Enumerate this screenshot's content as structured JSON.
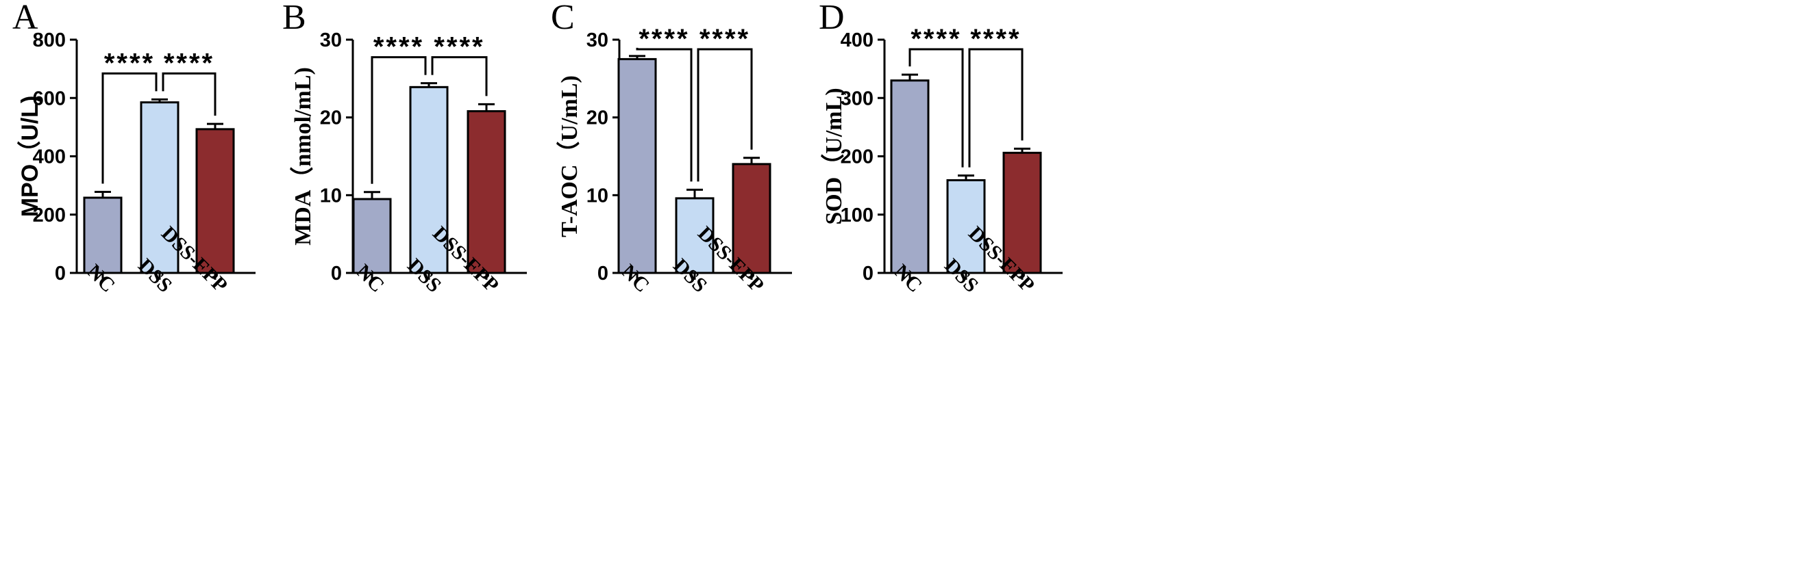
{
  "colors": {
    "NC": "#a2aac8",
    "DSS": "#c5dbf3",
    "DSS-EPP": "#8c2c2e"
  },
  "chart_data": [
    {
      "type": "bar",
      "panel": "A",
      "ylabel": "MPO（U/L)",
      "ylim": [
        0,
        800
      ],
      "yticks": [
        0,
        200,
        400,
        600,
        800
      ],
      "categories": [
        "NC",
        "DSS",
        "DSS-EPP"
      ],
      "values": [
        258,
        585,
        493
      ],
      "errors": [
        20,
        10,
        18
      ],
      "comparisons": [
        {
          "from": "NC",
          "to": "DSS",
          "label": "****"
        },
        {
          "from": "DSS",
          "to": "DSS-EPP",
          "label": "****"
        }
      ]
    },
    {
      "type": "bar",
      "panel": "B",
      "ylabel": "MDA（nmol/mL)",
      "ylim": [
        0,
        30
      ],
      "yticks": [
        0,
        10,
        20,
        30
      ],
      "categories": [
        "NC",
        "DSS",
        "DSS-EPP"
      ],
      "values": [
        9.5,
        23.9,
        20.8
      ],
      "errors": [
        0.9,
        0.5,
        0.9
      ],
      "comparisons": [
        {
          "from": "NC",
          "to": "DSS",
          "label": "****"
        },
        {
          "from": "DSS",
          "to": "DSS-EPP",
          "label": "****"
        }
      ]
    },
    {
      "type": "bar",
      "panel": "C",
      "ylabel": "T-AOC（U/mL)",
      "ylim": [
        0,
        30
      ],
      "yticks": [
        0,
        10,
        20,
        30
      ],
      "categories": [
        "NC",
        "DSS",
        "DSS-EPP"
      ],
      "values": [
        27.5,
        9.6,
        14.0
      ],
      "errors": [
        0.4,
        1.1,
        0.8
      ],
      "comparisons": [
        {
          "from": "NC",
          "to": "DSS",
          "label": "****"
        },
        {
          "from": "DSS",
          "to": "DSS-EPP",
          "label": "****"
        }
      ]
    },
    {
      "type": "bar",
      "panel": "D",
      "ylabel": "SOD（U/mL)",
      "ylim": [
        0,
        400
      ],
      "yticks": [
        0,
        100,
        200,
        300,
        400
      ],
      "categories": [
        "NC",
        "DSS",
        "DSS-EPP"
      ],
      "values": [
        330,
        159,
        206
      ],
      "errors": [
        10,
        8,
        7
      ],
      "comparisons": [
        {
          "from": "NC",
          "to": "DSS",
          "label": "****"
        },
        {
          "from": "DSS",
          "to": "DSS-EPP",
          "label": "****"
        }
      ]
    }
  ]
}
